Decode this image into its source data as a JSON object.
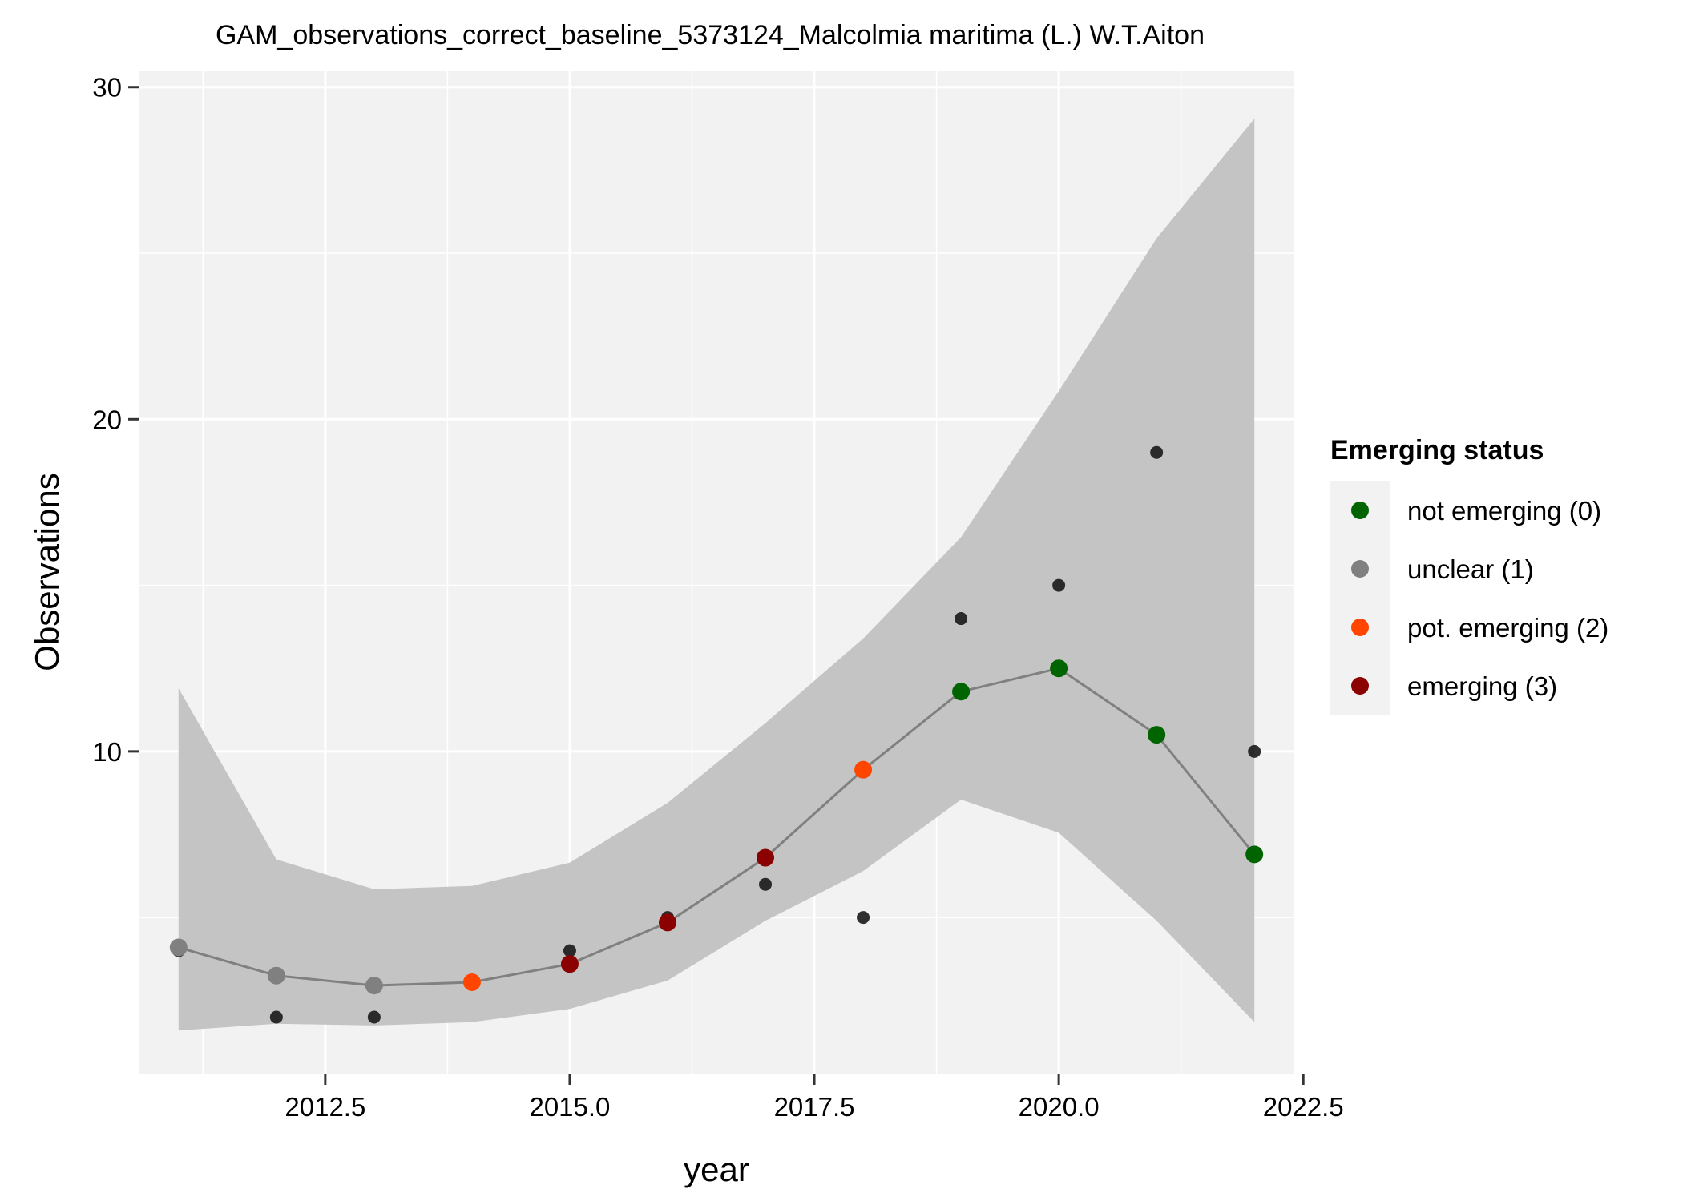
{
  "chart_data": {
    "type": "line",
    "title": "GAM_observations_correct_baseline_5373124_Malcolmia maritima (L.) W.T.Aiton",
    "xlabel": "year",
    "ylabel": "Observations",
    "xlim": [
      2010.6,
      2022.4
    ],
    "ylim": [
      0.3,
      30.5
    ],
    "x_ticks": [
      2012.5,
      2015.0,
      2017.5,
      2020.0,
      2022.5
    ],
    "x_tick_labels": [
      "2012.5",
      "2015.0",
      "2017.5",
      "2020.0",
      "2022.5"
    ],
    "y_ticks": [
      10,
      20,
      30
    ],
    "y_tick_labels": [
      "10",
      "20",
      "30"
    ],
    "grid": true,
    "observed": {
      "x": [
        2011,
        2012,
        2013,
        2014,
        2015,
        2016,
        2017,
        2018,
        2019,
        2020,
        2021,
        2022
      ],
      "y": [
        4,
        2,
        2,
        3,
        4,
        5,
        6,
        5,
        14,
        15,
        19,
        10
      ]
    },
    "fitted": {
      "x": [
        2011,
        2012,
        2013,
        2014,
        2015,
        2016,
        2017,
        2018,
        2019,
        2020,
        2021,
        2022
      ],
      "y": [
        4.1,
        3.25,
        2.95,
        3.05,
        3.6,
        4.85,
        6.8,
        9.45,
        11.8,
        12.5,
        10.5,
        6.9
      ],
      "status": [
        1,
        1,
        1,
        2,
        3,
        3,
        3,
        2,
        0,
        0,
        0,
        0
      ]
    },
    "ci": {
      "lower": [
        1.6,
        1.8,
        1.75,
        1.85,
        2.25,
        3.1,
        4.9,
        6.4,
        8.55,
        7.55,
        4.9,
        1.85
      ],
      "upper": [
        11.9,
        6.75,
        5.85,
        5.95,
        6.65,
        8.45,
        10.85,
        13.4,
        16.45,
        20.85,
        25.45,
        29.05
      ]
    },
    "legend": {
      "title": "Emerging status",
      "position": "right",
      "entries": [
        {
          "label": "not emerging (0)",
          "color": "#006400"
        },
        {
          "label": "unclear (1)",
          "color": "#808080"
        },
        {
          "label": "pot. emerging (2)",
          "color": "#ff4500"
        },
        {
          "label": "emerging (3)",
          "color": "#8b0000"
        }
      ]
    },
    "colors": {
      "panel_bg": "#f2f2f2",
      "grid_major": "#ffffff",
      "ci_band": "#c4c4c4",
      "fit_line": "#808080",
      "observed_point": "#1a1a1a"
    }
  }
}
